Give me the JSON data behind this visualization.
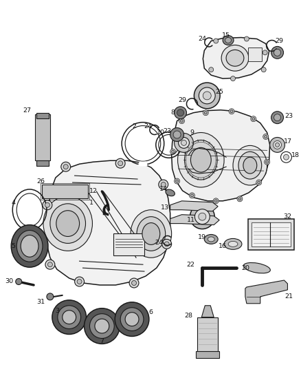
{
  "bg_color": "#ffffff",
  "fig_width": 4.38,
  "fig_height": 5.33,
  "dpi": 100,
  "line_color": "#1a1a1a",
  "fill_light": "#f0f0f0",
  "fill_mid": "#d8d8d8",
  "fill_dark": "#888888"
}
